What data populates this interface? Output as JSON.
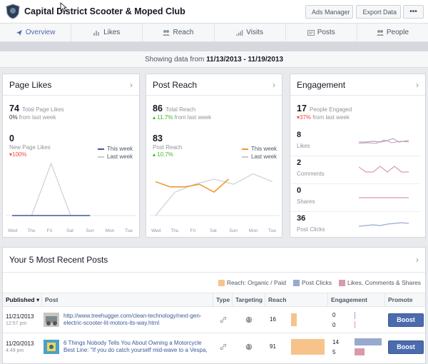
{
  "page": {
    "name": "Capital District Scooter & Moped Club"
  },
  "top_buttons": {
    "ads_manager": "Ads Manager",
    "export_data": "Export Data",
    "more": "•••"
  },
  "tabs": [
    {
      "label": "Overview",
      "icon": "arrow-icon"
    },
    {
      "label": "Likes",
      "icon": "bar-icon"
    },
    {
      "label": "Reach",
      "icon": "people-icon"
    },
    {
      "label": "Visits",
      "icon": "bars-icon"
    },
    {
      "label": "Posts",
      "icon": "post-icon"
    },
    {
      "label": "People",
      "icon": "people-icon"
    }
  ],
  "date_range": {
    "prefix": "Showing data from",
    "value": "11/13/2013 - 11/19/2013"
  },
  "cards": {
    "page_likes": {
      "title": "Page Likes",
      "total": "74",
      "total_label": "Total Page Likes",
      "change": "0%",
      "change_label": "from last week",
      "new": "0",
      "new_label": "New Page Likes",
      "new_change": "▾100%",
      "legend_this": "This week",
      "legend_last": "Last week"
    },
    "post_reach": {
      "title": "Post Reach",
      "total": "86",
      "total_label": "Total Reach",
      "change": "▴ 11.7%",
      "change_label": "from last week",
      "post": "83",
      "post_label": "Post Reach",
      "post_change": "▴ 10.7%",
      "legend_this": "This week",
      "legend_last": "Last week"
    },
    "engagement": {
      "title": "Engagement",
      "total": "17",
      "total_label": "People Engaged",
      "change": "▾37%",
      "change_label": "from last week",
      "rows": [
        {
          "value": "8",
          "label": "Likes"
        },
        {
          "value": "2",
          "label": "Comments"
        },
        {
          "value": "0",
          "label": "Shares"
        },
        {
          "value": "36",
          "label": "Post Clicks"
        }
      ]
    }
  },
  "days": [
    "Wed",
    "Thu",
    "Fri",
    "Sat",
    "Sun",
    "Mon",
    "Tue"
  ],
  "chart_data": [
    {
      "type": "line",
      "categories": [
        "Wed",
        "Thu",
        "Fri",
        "Sat",
        "Sun",
        "Mon",
        "Tue"
      ],
      "series": [
        {
          "name": "This week",
          "values": [
            0,
            0,
            0,
            0,
            0,
            null,
            null
          ]
        },
        {
          "name": "Last week",
          "values": [
            0,
            0,
            1,
            0,
            0,
            null,
            null
          ]
        }
      ],
      "ylim": [
        0,
        1
      ]
    },
    {
      "type": "line",
      "categories": [
        "Wed",
        "Thu",
        "Fri",
        "Sat",
        "Sun",
        "Mon",
        "Tue"
      ],
      "series": [
        {
          "name": "This week",
          "values": [
            null,
            null,
            null,
            null,
            12,
            null,
            null
          ]
        },
        {
          "name": "Last week",
          "values": [
            0,
            9,
            12,
            14,
            12,
            16,
            13
          ]
        }
      ],
      "ylim": [
        0,
        20
      ]
    }
  ],
  "post_reach_this_week": [
    13,
    11,
    11,
    12,
    9,
    14
  ],
  "recent": {
    "title": "Your 5 Most Recent Posts",
    "keys": [
      {
        "label": "Reach: Organic / Paid",
        "color": "#f7c38b"
      },
      {
        "label": "Post Clicks",
        "color": "#98a9ce"
      },
      {
        "label": "Likes, Comments & Shares",
        "color": "#d99aaa"
      }
    ],
    "headers": {
      "published": "Published ▾",
      "post": "Post",
      "type": "Type",
      "targeting": "Targeting",
      "reach": "Reach",
      "engagement": "Engagement",
      "promote": "Promote"
    },
    "rows": [
      {
        "date": "11/21/2013",
        "time": "12:57 pm",
        "text": "http://www.treehugger.com/clean-technology/next-gen-electric-scooter-lit-motors-its-way.html",
        "reach": "16",
        "clicks": "0",
        "engagement": "0",
        "boost": "Boost"
      },
      {
        "date": "11/20/2013",
        "time": "4:49 pm",
        "text": "6 Things Nobody Tells You About Owning a Motorcycle Best Line: \"If you do catch yourself mid-wave to a Vespa,",
        "reach": "91",
        "clicks": "14",
        "engagement": "5",
        "boost": "Boost"
      }
    ]
  }
}
